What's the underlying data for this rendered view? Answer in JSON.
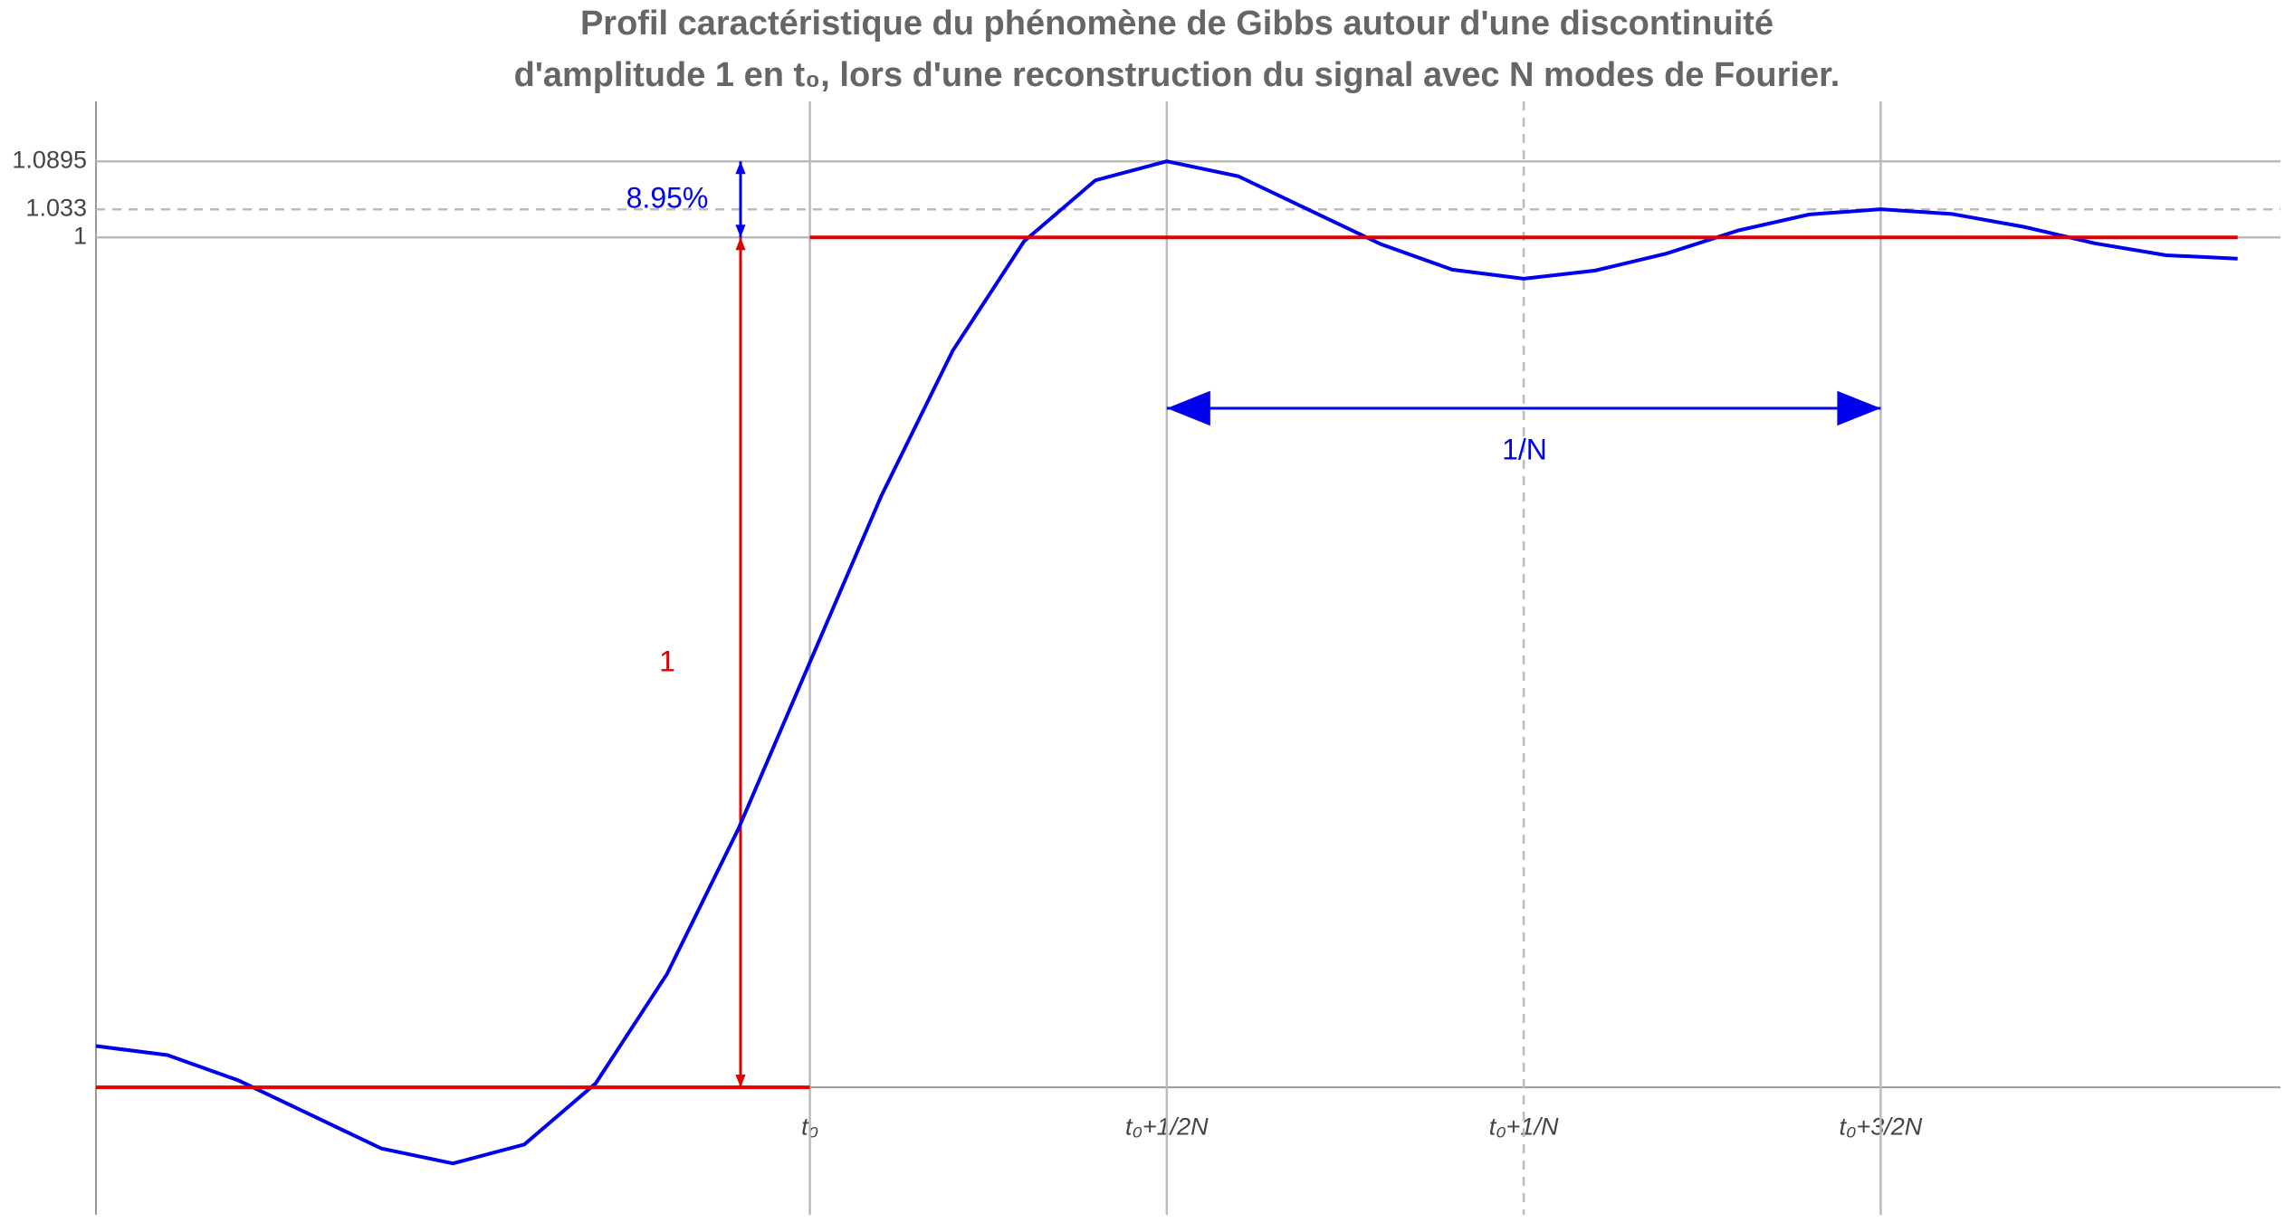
{
  "chart_data": {
    "type": "line",
    "title": [
      "Profil caractéristique du phénomène de Gibbs autour d'une discontinuité",
      "d'amplitude 1 en t₀, lors d'une reconstruction du signal avec N modes de Fourier."
    ],
    "xlim": [
      -1,
      2.06
    ],
    "ylim": [
      -0.15,
      1.16
    ],
    "xticks": [
      {
        "value": 0,
        "label": "t₀"
      },
      {
        "value": 0.5,
        "label": "t₀+1/2N"
      },
      {
        "value": 1,
        "label": "t₀+1/N"
      },
      {
        "value": 1.5,
        "label": "t₀+3/2N"
      }
    ],
    "yticks": [
      1.0895,
      1.033,
      1
    ],
    "grid": true,
    "series": [
      {
        "color": "#0000ee",
        "x": [
          -1,
          -0.9,
          -0.8,
          -0.7,
          -0.6,
          -0.5,
          -0.4,
          -0.3,
          -0.2,
          -0.1,
          0,
          0.1,
          0.2,
          0.3,
          0.4,
          0.5,
          0.6,
          0.7,
          0.8,
          0.9,
          1,
          1.1,
          1.2,
          1.3,
          1.4,
          1.5,
          1.6,
          1.7,
          1.8,
          1.9,
          2
        ],
        "values": [
          0.0486,
          0.038,
          0.008,
          -0.032,
          -0.072,
          -0.0895,
          -0.0672,
          0.0047,
          0.1335,
          0.3043,
          0.5,
          0.6957,
          0.8665,
          0.9953,
          1.0672,
          1.0895,
          1.072,
          1.032,
          0.992,
          0.962,
          0.9514,
          0.961,
          0.981,
          1.008,
          1.027,
          1.0331,
          1.0275,
          1.0125,
          0.993,
          0.979,
          0.975
        ]
      },
      {
        "color": "#e00000",
        "x": [
          -1,
          0,
          0,
          0,
          2
        ],
        "values": [
          0,
          0,
          null,
          1,
          1
        ]
      }
    ],
    "annotations": [
      "8.95%",
      "1/N",
      "1"
    ]
  }
}
